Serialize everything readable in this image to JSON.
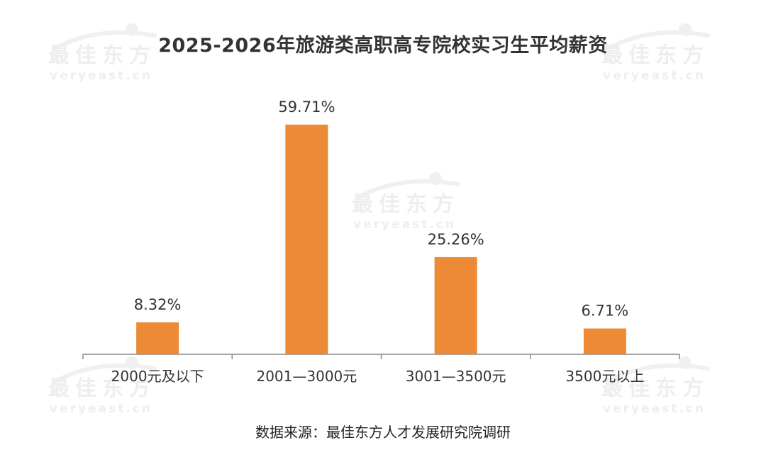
{
  "watermark": {
    "brand": "最佳东方",
    "domain": "veryeast.cn"
  },
  "colors": {
    "bar": "#ed8a35"
  },
  "chart_data": {
    "type": "bar",
    "title": "2025-2026年旅游类高职高专院校实习生平均薪资",
    "categories": [
      "2000元及以下",
      "2001—3000元",
      "3001—3500元",
      "3500元以上"
    ],
    "values": [
      8.32,
      59.71,
      25.26,
      6.71
    ],
    "data_labels": [
      "8.32%",
      "59.71%",
      "25.26%",
      "6.71%"
    ],
    "xlabel": "",
    "ylabel": "",
    "ylim": [
      0,
      70
    ],
    "grid": false,
    "legend": "none"
  },
  "source": "数据来源：最佳东方人才发展研究院调研"
}
